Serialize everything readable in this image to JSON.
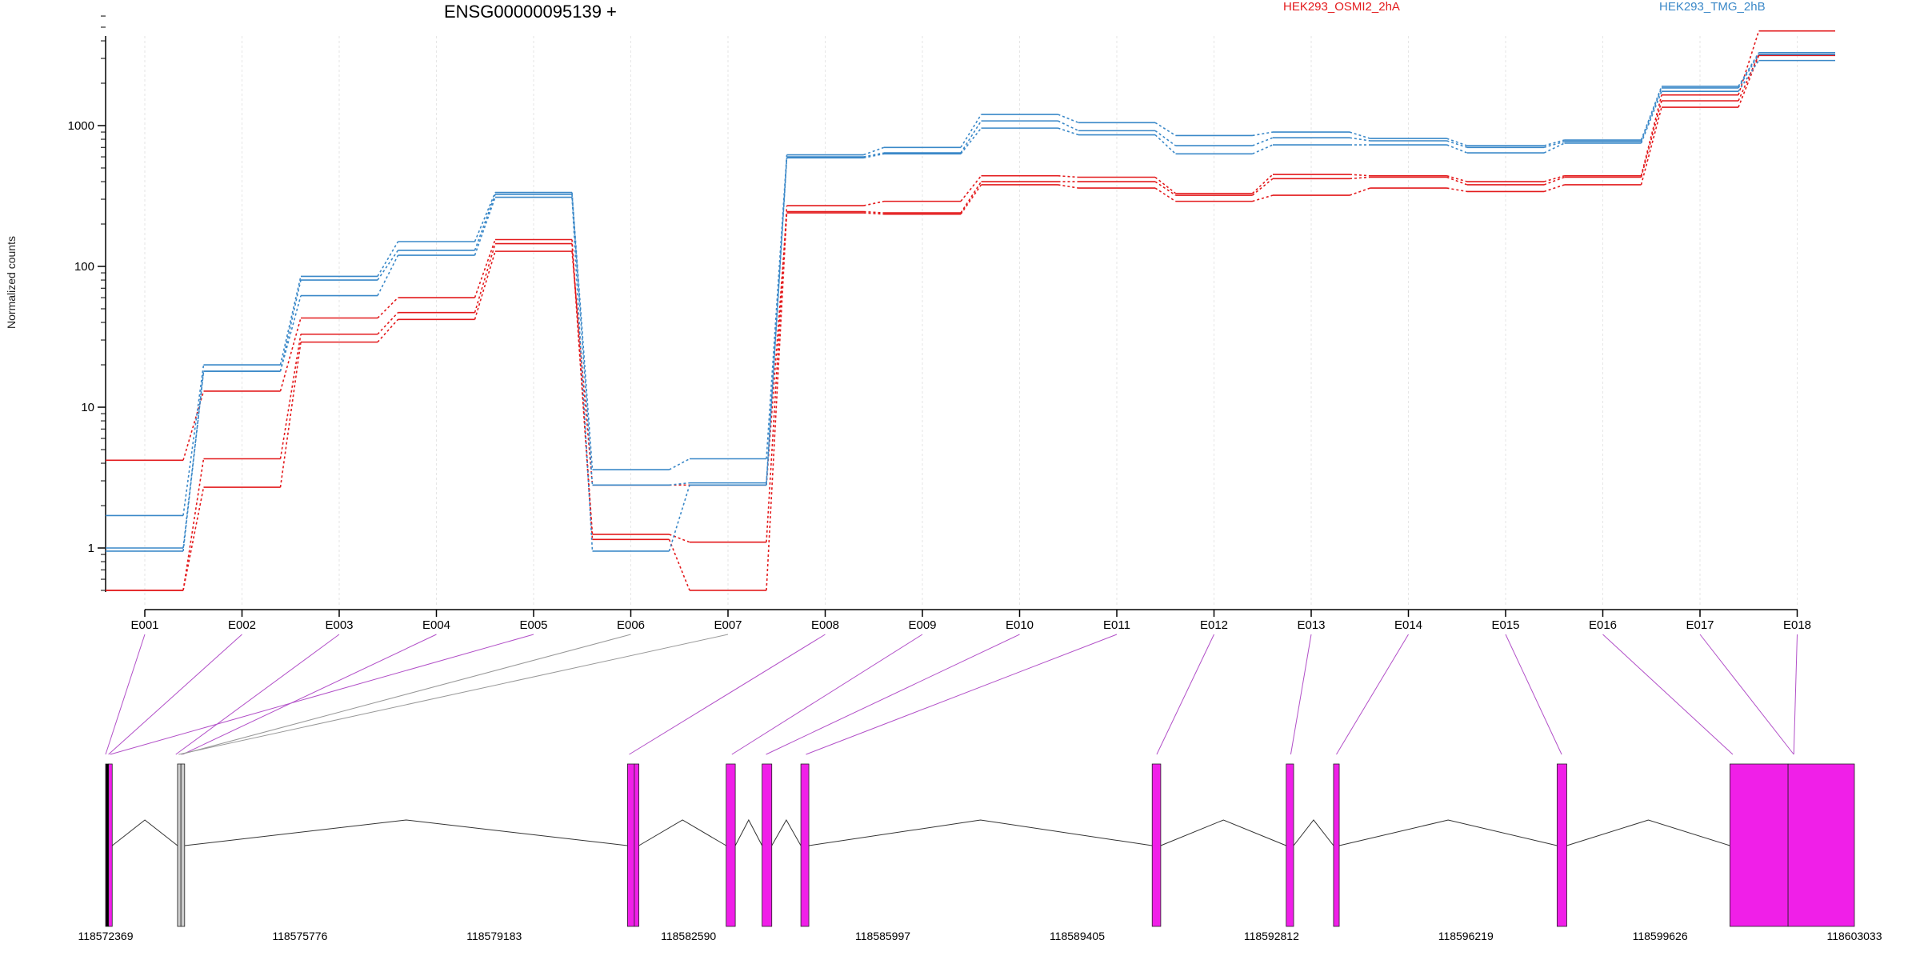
{
  "title": "ENSG00000095139 +",
  "legend": [
    {
      "label": "HEK293_OSMI2_2hA",
      "color": "#e31a1c"
    },
    {
      "label": "HEK293_TMG_2hB",
      "color": "#3a88c8"
    }
  ],
  "colors": {
    "group_a": "#e31a1c",
    "group_b": "#3a88c8",
    "mean_overlap": "#6b6b9a",
    "exon_tested": "#f01fe8",
    "exon_untested": "#cccccc",
    "connector_tested": "#b250c8",
    "connector_untested": "#999999",
    "grid": "#e6e6e6"
  },
  "chart_data": {
    "type": "line",
    "scale": "log",
    "ylabel": "Normalized counts",
    "yticks": [
      {
        "value": 1,
        "label": "1"
      },
      {
        "value": 10,
        "label": "10"
      },
      {
        "value": 100,
        "label": "100"
      },
      {
        "value": 1000,
        "label": "1000"
      }
    ],
    "ylim": [
      0.45,
      6000
    ],
    "categories": [
      "E001",
      "E002",
      "E003",
      "E004",
      "E005",
      "E006",
      "E007",
      "E008",
      "E009",
      "E010",
      "E011",
      "E012",
      "E013",
      "E014",
      "E015",
      "E016",
      "E017",
      "E018"
    ],
    "series": [
      {
        "group": "HEK293_OSMI2_2hA",
        "values": [
          4.2,
          13,
          43,
          60,
          155,
          1.25,
          1.1,
          270,
          290,
          440,
          430,
          330,
          450,
          440,
          400,
          440,
          1650,
          4700
        ]
      },
      {
        "group": "HEK293_OSMI2_2hA",
        "values": [
          0.5,
          4.3,
          33,
          47,
          145,
          1.15,
          0.5,
          245,
          240,
          400,
          400,
          320,
          420,
          430,
          380,
          430,
          1500,
          3200
        ]
      },
      {
        "group": "HEK293_OSMI2_2hA",
        "values": [
          0.5,
          2.7,
          29,
          42,
          128,
          2.8,
          2.8,
          240,
          235,
          380,
          360,
          290,
          320,
          360,
          340,
          380,
          1350,
          3150
        ]
      },
      {
        "group": "HEK293_TMG_2hB",
        "values": [
          1.7,
          20,
          85,
          150,
          335,
          3.6,
          4.3,
          620,
          700,
          1200,
          1050,
          850,
          900,
          810,
          720,
          790,
          1900,
          3300
        ]
      },
      {
        "group": "HEK293_TMG_2hB",
        "values": [
          1.0,
          18,
          80,
          130,
          325,
          2.8,
          2.9,
          600,
          640,
          1080,
          920,
          720,
          820,
          780,
          700,
          770,
          1850,
          3200
        ]
      },
      {
        "group": "HEK293_TMG_2hB",
        "values": [
          0.95,
          18,
          62,
          120,
          310,
          0.95,
          2.8,
          590,
          630,
          960,
          860,
          630,
          730,
          730,
          640,
          750,
          1750,
          2900
        ]
      }
    ],
    "gene_model": {
      "coordinate_ticks": [
        "118572369",
        "118575776",
        "118579183",
        "118582590",
        "118585997",
        "118589405",
        "118592812",
        "118596219",
        "118599626",
        "118603033"
      ],
      "exon_start_coords": [
        118572369,
        118572420,
        118573600,
        118573720,
        118572450,
        118573690,
        118573650,
        118581550,
        118583350,
        118583950,
        118584650,
        118590800,
        118593150,
        118593950,
        118597900,
        118600900,
        118601970,
        118601970
      ]
    }
  }
}
